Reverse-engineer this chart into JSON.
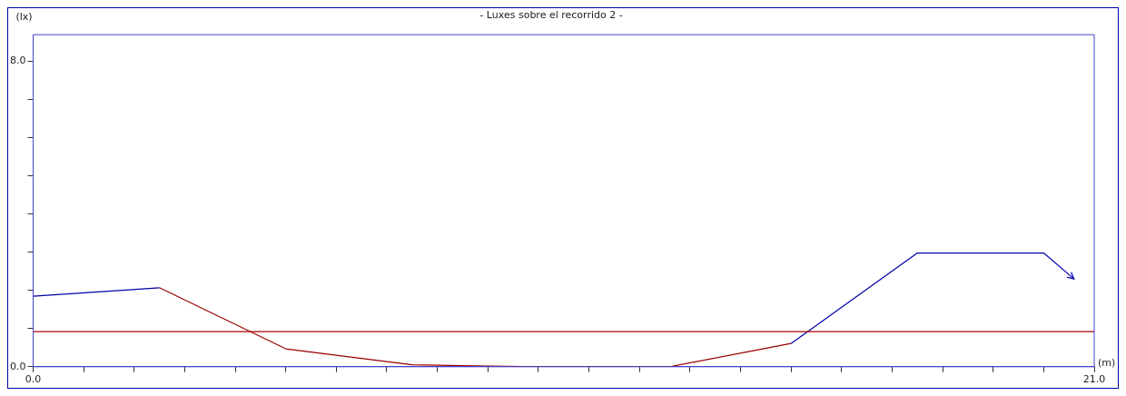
{
  "chart_data": {
    "type": "line",
    "title": "- Luxes sobre el recorrido 2 -",
    "xlabel": "(m)",
    "ylabel": "(lx)",
    "x": [
      0,
      2.5,
      5,
      7.5,
      10,
      12.6,
      15,
      17.5,
      20,
      20.6
    ],
    "series": [
      {
        "color": "#0000aa",
        "values": [
          1.85,
          2.07,
          null,
          null,
          null,
          null,
          0.61,
          2.98,
          2.98,
          2.3
        ]
      },
      {
        "color": "#990000",
        "values": [
          null,
          2.07,
          0.47,
          0.05,
          0,
          0,
          0.61,
          null,
          null,
          null
        ]
      }
    ],
    "xlim": [
      0,
      21
    ],
    "ylim": [
      0,
      8.7
    ],
    "xticks": [
      {
        "value": 0,
        "label": "0.0"
      },
      {
        "value": 1,
        "label": null
      },
      {
        "value": 2,
        "label": null
      },
      {
        "value": 3,
        "label": null
      },
      {
        "value": 4,
        "label": null
      },
      {
        "value": 5,
        "label": null
      },
      {
        "value": 6,
        "label": null
      },
      {
        "value": 7,
        "label": null
      },
      {
        "value": 8,
        "label": null
      },
      {
        "value": 9,
        "label": null
      },
      {
        "value": 10,
        "label": null
      },
      {
        "value": 11,
        "label": null
      },
      {
        "value": 12,
        "label": null
      },
      {
        "value": 13,
        "label": null
      },
      {
        "value": 14,
        "label": null
      },
      {
        "value": 15,
        "label": null
      },
      {
        "value": 16,
        "label": null
      },
      {
        "value": 17,
        "label": null
      },
      {
        "value": 18,
        "label": null
      },
      {
        "value": 19,
        "label": null
      },
      {
        "value": 20,
        "label": null
      },
      {
        "value": 21,
        "label": "21.0"
      }
    ],
    "yticks": [
      {
        "value": 0,
        "label": "0.0"
      },
      {
        "value": 1,
        "label": null
      },
      {
        "value": 2,
        "label": null
      },
      {
        "value": 3,
        "label": null
      },
      {
        "value": 4,
        "label": null
      },
      {
        "value": 5,
        "label": null
      },
      {
        "value": 6,
        "label": null
      },
      {
        "value": 7,
        "label": null
      },
      {
        "value": 8,
        "label": "8.0"
      }
    ],
    "ref_lines": [
      {
        "axis": "y",
        "value": 0.92,
        "color": "#aa0000"
      }
    ],
    "grid": false,
    "legend": false,
    "marker": "none",
    "line_style": "solid"
  }
}
